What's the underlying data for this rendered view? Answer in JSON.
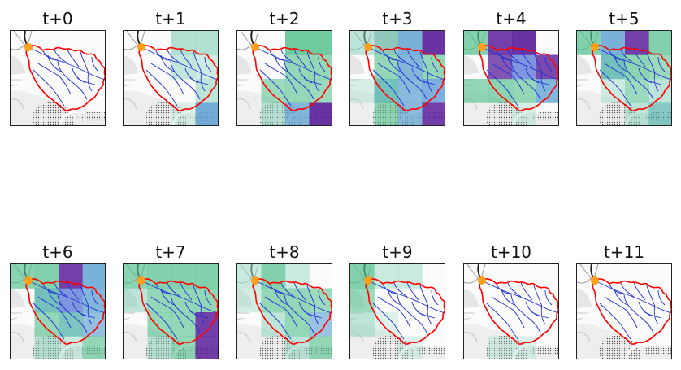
{
  "panels": [
    {
      "label": "t+0",
      "cells": []
    },
    {
      "label": "t+1",
      "cells": [
        [
          2,
          0,
          "#7fceb5",
          0.6
        ],
        [
          3,
          0,
          "#7fceb5",
          0.6
        ],
        [
          2,
          1,
          "#7fceb5",
          0.45
        ],
        [
          3,
          1,
          "#9fdcc8",
          0.5
        ],
        [
          3,
          2,
          "#7fceb5",
          0.5
        ],
        [
          3,
          3,
          "#5a9fd0",
          0.85
        ],
        [
          2,
          3,
          "#9fdcc8",
          0.35
        ]
      ]
    },
    {
      "label": "t+2",
      "cells": [
        [
          2,
          0,
          "#4fbf8a",
          0.8
        ],
        [
          3,
          0,
          "#4fbf8a",
          0.8
        ],
        [
          2,
          1,
          "#4fbf8a",
          0.6
        ],
        [
          3,
          1,
          "#4fbf8a",
          0.6
        ],
        [
          1,
          2,
          "#4fbf8a",
          0.55
        ],
        [
          2,
          2,
          "#4fbf8a",
          0.6
        ],
        [
          3,
          2,
          "#4fbf8a",
          0.55
        ],
        [
          1,
          3,
          "#7fceb5",
          0.5
        ],
        [
          2,
          3,
          "#5a9fd0",
          0.75
        ],
        [
          3,
          3,
          "#5a1d9a",
          0.9
        ]
      ]
    },
    {
      "label": "t+3",
      "cells": [
        [
          0,
          0,
          "#7fceb5",
          0.5
        ],
        [
          1,
          0,
          "#5fb3a0",
          0.7
        ],
        [
          2,
          0,
          "#5a9fd0",
          0.8
        ],
        [
          3,
          0,
          "#5a1d9a",
          0.9
        ],
        [
          1,
          1,
          "#4fbf8a",
          0.6
        ],
        [
          2,
          1,
          "#5a9fd0",
          0.75
        ],
        [
          3,
          1,
          "#4fbf8a",
          0.6
        ],
        [
          0,
          2,
          "#9fdcc8",
          0.4
        ],
        [
          1,
          2,
          "#3aa8a0",
          0.7
        ],
        [
          2,
          2,
          "#5a9fd0",
          0.7
        ],
        [
          3,
          2,
          "#4a90d0",
          0.7
        ],
        [
          1,
          3,
          "#4fbf8a",
          0.6
        ],
        [
          2,
          3,
          "#5a9fd0",
          0.7
        ],
        [
          3,
          3,
          "#5a1d9a",
          0.85
        ]
      ]
    },
    {
      "label": "t+4",
      "cells": [
        [
          0,
          0,
          "#4fbf8a",
          0.7
        ],
        [
          1,
          0,
          "#5a1d9a",
          0.85
        ],
        [
          2,
          0,
          "#5a1d9a",
          0.9
        ],
        [
          1,
          1,
          "#5a1d9a",
          0.75
        ],
        [
          2,
          1,
          "#4a6ad0",
          0.7
        ],
        [
          3,
          1,
          "#5a1d9a",
          0.8
        ],
        [
          0,
          2,
          "#4fbf8a",
          0.6
        ],
        [
          1,
          2,
          "#4fbf8a",
          0.65
        ],
        [
          2,
          2,
          "#4fbf8a",
          0.6
        ],
        [
          3,
          2,
          "#5a9fd0",
          0.75
        ],
        [
          2,
          3,
          "#9fdcc8",
          0.4
        ]
      ]
    },
    {
      "label": "t+5",
      "cells": [
        [
          0,
          0,
          "#4fbf8a",
          0.7
        ],
        [
          1,
          0,
          "#5a9fd0",
          0.8
        ],
        [
          2,
          0,
          "#5a1d9a",
          0.85
        ],
        [
          3,
          0,
          "#4fbf8a",
          0.7
        ],
        [
          1,
          1,
          "#3aa8a0",
          0.7
        ],
        [
          2,
          1,
          "#4fbf8a",
          0.65
        ],
        [
          3,
          1,
          "#4fbf8a",
          0.55
        ],
        [
          1,
          2,
          "#9fdcc8",
          0.5
        ],
        [
          2,
          2,
          "#4fbf8a",
          0.55
        ],
        [
          3,
          2,
          "#7fceb5",
          0.5
        ],
        [
          2,
          3,
          "#7fceb5",
          0.5
        ],
        [
          3,
          3,
          "#3aa8a0",
          0.6
        ]
      ]
    },
    {
      "label": "t+6",
      "cells": [
        [
          0,
          0,
          "#4fbf8a",
          0.65
        ],
        [
          1,
          0,
          "#4fbf8a",
          0.7
        ],
        [
          2,
          0,
          "#5a1d9a",
          0.85
        ],
        [
          3,
          0,
          "#5a9fd0",
          0.8
        ],
        [
          1,
          1,
          "#3aa8a0",
          0.7
        ],
        [
          2,
          1,
          "#4a6ad0",
          0.7
        ],
        [
          3,
          1,
          "#5a9fd0",
          0.75
        ],
        [
          1,
          2,
          "#4fbf8a",
          0.6
        ],
        [
          2,
          2,
          "#3aa8a0",
          0.65
        ],
        [
          3,
          2,
          "#5a9fd0",
          0.65
        ],
        [
          1,
          3,
          "#7fceb5",
          0.5
        ],
        [
          2,
          3,
          "#9fdcc8",
          0.5
        ],
        [
          3,
          3,
          "#4fbf8a",
          0.6
        ]
      ]
    },
    {
      "label": "t+7",
      "cells": [
        [
          0,
          0,
          "#4fbf8a",
          0.65
        ],
        [
          1,
          0,
          "#4fbf8a",
          0.7
        ],
        [
          2,
          0,
          "#4fbf8a",
          0.7
        ],
        [
          3,
          0,
          "#4fbf8a",
          0.7
        ],
        [
          0,
          1,
          "#7fceb5",
          0.5
        ],
        [
          1,
          1,
          "#4fbf8a",
          0.6
        ],
        [
          2,
          1,
          "#4fbf8a",
          0.6
        ],
        [
          3,
          1,
          "#4fbf8a",
          0.6
        ],
        [
          1,
          2,
          "#4fbf8a",
          0.6
        ],
        [
          2,
          2,
          "#4fbf8a",
          0.6
        ],
        [
          3,
          2,
          "#5a1d9a",
          0.85
        ],
        [
          1,
          3,
          "#7fceb5",
          0.5
        ],
        [
          2,
          3,
          "#4fbf8a",
          0.6
        ],
        [
          3,
          3,
          "#5a1d9a",
          0.85
        ]
      ]
    },
    {
      "label": "t+8",
      "cells": [
        [
          0,
          0,
          "#9fdcc8",
          0.55
        ],
        [
          1,
          0,
          "#4fbf8a",
          0.7
        ],
        [
          2,
          0,
          "#9fdcc8",
          0.55
        ],
        [
          0,
          1,
          "#9fdcc8",
          0.45
        ],
        [
          1,
          1,
          "#4fbf8a",
          0.6
        ],
        [
          2,
          1,
          "#4fbf8a",
          0.6
        ],
        [
          3,
          1,
          "#4fbf8a",
          0.55
        ],
        [
          1,
          2,
          "#7fceb5",
          0.5
        ],
        [
          2,
          2,
          "#4fbf8a",
          0.6
        ],
        [
          3,
          2,
          "#5a9fd0",
          0.6
        ],
        [
          2,
          3,
          "#7fceb5",
          0.5
        ],
        [
          3,
          3,
          "#4fbf8a",
          0.6
        ]
      ]
    },
    {
      "label": "t+9",
      "cells": [
        [
          0,
          0,
          "#4fbf8a",
          0.7
        ],
        [
          1,
          0,
          "#9fdcc8",
          0.55
        ],
        [
          2,
          0,
          "#9fdcc8",
          0.55
        ],
        [
          0,
          1,
          "#4fbf8a",
          0.55
        ],
        [
          0,
          2,
          "#7fceb5",
          0.5
        ],
        [
          1,
          2,
          "#9fdcc8",
          0.3
        ],
        [
          2,
          3,
          "#9fdcc8",
          0.3
        ]
      ]
    },
    {
      "label": "t+10",
      "cells": [
        [
          1,
          3,
          "#9fdcc8",
          0.35
        ],
        [
          2,
          3,
          "#9fdcc8",
          0.35
        ]
      ]
    },
    {
      "label": "t+11",
      "cells": []
    }
  ]
}
